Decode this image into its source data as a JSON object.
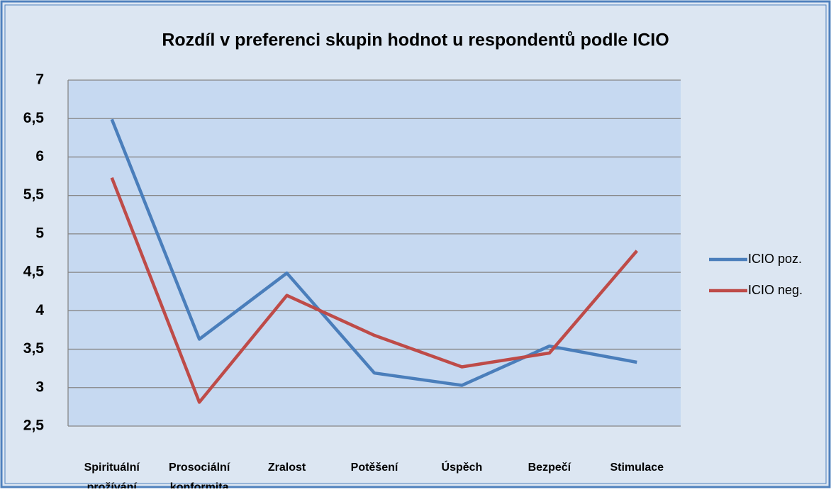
{
  "chart_data": {
    "type": "line",
    "title": "Rozdíl v preferenci skupin hodnot u respondentů podle ICIO",
    "categories": [
      "Spirituální prožívání",
      "Prosociální konformita",
      "Zralost",
      "Potěšení",
      "Úspěch",
      "Bezpečí",
      "Stimulace"
    ],
    "series": [
      {
        "name": "ICIO poz.",
        "color": "#4a7ebb",
        "values": [
          6.49,
          3.63,
          4.49,
          3.19,
          3.03,
          3.54,
          3.33
        ]
      },
      {
        "name": "ICIO neg.",
        "color": "#be4b48",
        "values": [
          5.73,
          2.81,
          4.2,
          3.68,
          3.27,
          3.45,
          4.78
        ]
      }
    ],
    "ylim": [
      2.5,
      7
    ],
    "yticks": [
      {
        "value": 2.5,
        "label": "2,5"
      },
      3,
      {
        "value": 3.5,
        "label": "3,5"
      },
      4,
      {
        "value": 4.5,
        "label": "4,5"
      },
      5,
      {
        "value": 5.5,
        "label": "5,5"
      },
      6,
      {
        "value": 6.5,
        "label": "6,5"
      },
      7
    ],
    "grid": true,
    "legend": "right"
  }
}
